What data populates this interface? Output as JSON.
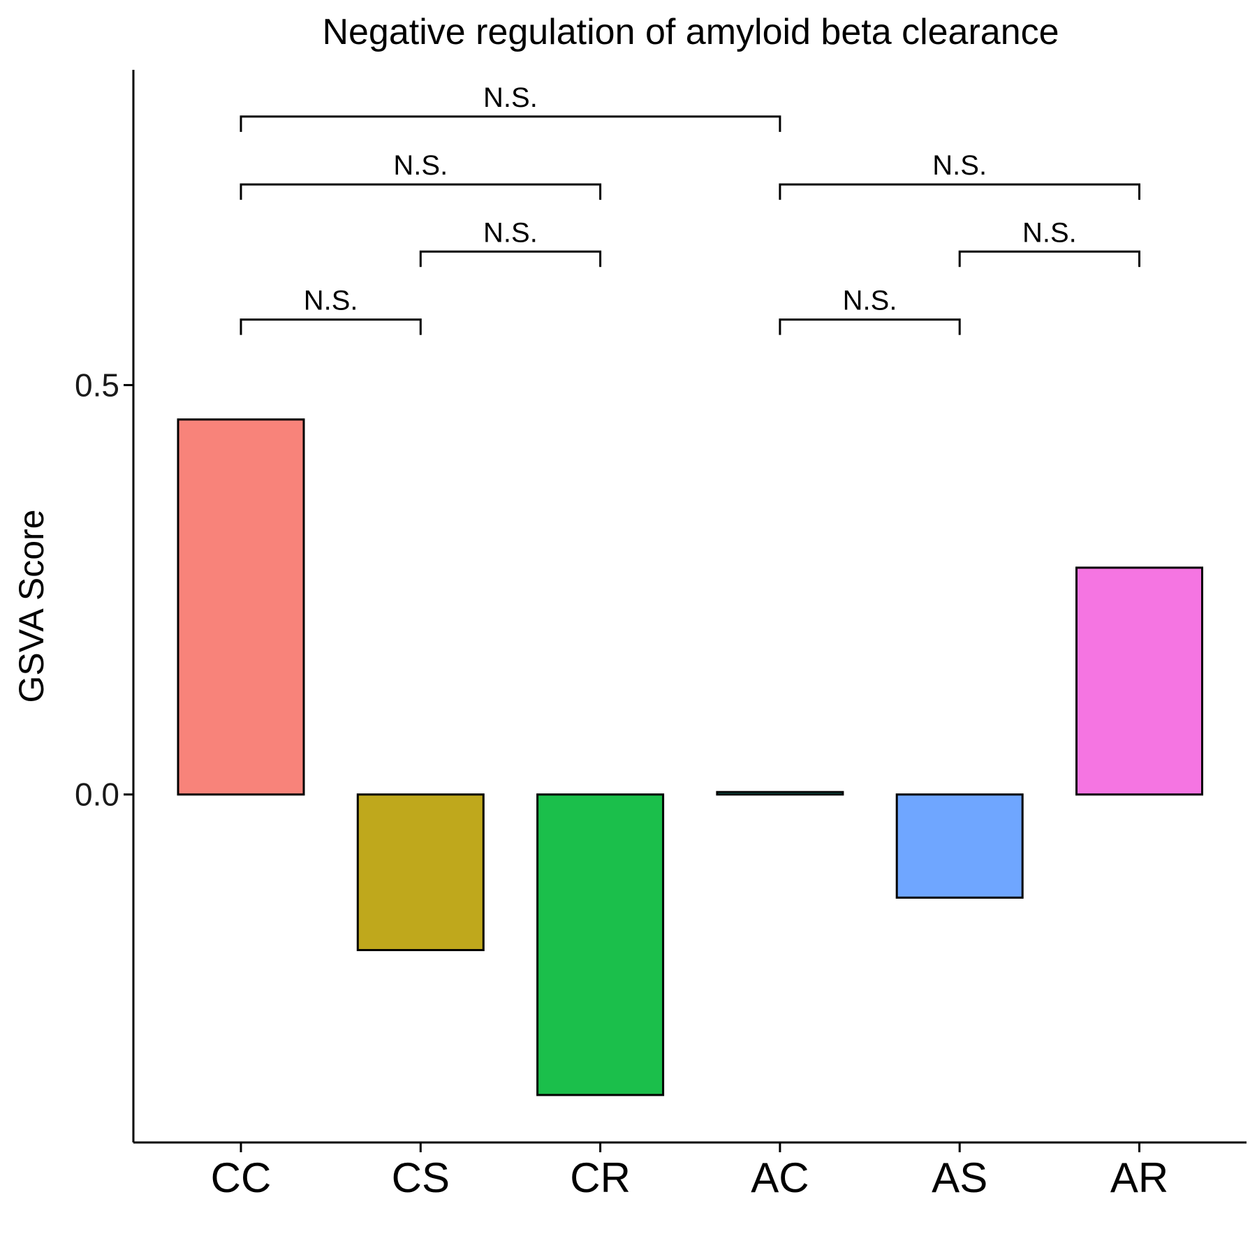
{
  "chart_data": {
    "type": "bar",
    "title": "Negative regulation of amyloid beta clearance",
    "xlabel": "",
    "ylabel": "GSVA Score",
    "categories": [
      "CC",
      "CS",
      "CR",
      "AC",
      "AS",
      "AR"
    ],
    "values": [
      0.458,
      -0.19,
      -0.367,
      0.003,
      -0.126,
      0.277
    ],
    "colors": [
      "#F8837A",
      "#BFA81C",
      "#1BBF4B",
      "#15BFA8",
      "#6FA6FF",
      "#F575E2"
    ],
    "ylim": [
      -0.425,
      0.885
    ],
    "yticks": [
      0.5,
      0.0
    ],
    "ytick_labels": [
      "0.5",
      "0.0"
    ],
    "grid": false,
    "legend": "none",
    "comparisons": [
      {
        "from": "CC",
        "to": "CS",
        "label": "N.S.",
        "y": 0.58
      },
      {
        "from": "CS",
        "to": "CR",
        "label": "N.S.",
        "y": 0.663
      },
      {
        "from": "CC",
        "to": "CR",
        "label": "N.S.",
        "y": 0.745
      },
      {
        "from": "CC",
        "to": "AC",
        "label": "N.S.",
        "y": 0.828
      },
      {
        "from": "AC",
        "to": "AS",
        "label": "N.S.",
        "y": 0.58
      },
      {
        "from": "AS",
        "to": "AR",
        "label": "N.S.",
        "y": 0.663
      },
      {
        "from": "AC",
        "to": "AR",
        "label": "N.S.",
        "y": 0.745
      }
    ]
  }
}
